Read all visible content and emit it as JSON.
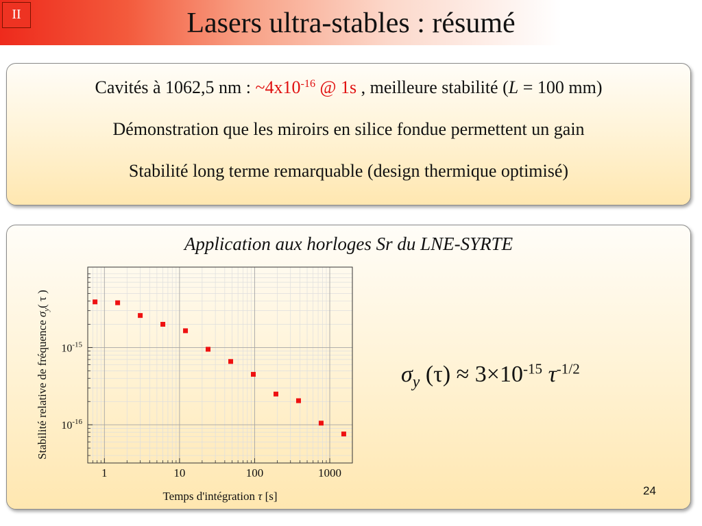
{
  "header": {
    "section": "II",
    "title": "Lasers ultra-stables : résumé"
  },
  "box1": {
    "line1": {
      "pre": "Cavités à 1062,5 nm : ",
      "value": "~4x10",
      "exp": "-16",
      "at": " @ 1s",
      "post": " , meilleure stabilité (",
      "L": "L",
      "post2": " = 100 mm)"
    },
    "line2": "Démonstration que les miroirs en silice fondue permettent un gain",
    "line3": "Stabilité long terme remarquable (design thermique optimisé)"
  },
  "box2": {
    "title": "Application aux horloges Sr du LNE-SYRTE",
    "formula": {
      "sigma": "σ",
      "sub": "y",
      "tau_paren": " (τ) ≈ 3×10",
      "exp": "-15",
      "tau": " τ",
      "tau_exp": "-1/2"
    }
  },
  "page_number": "24",
  "chart_data": {
    "type": "scatter",
    "x_scale": "log",
    "y_scale": "log",
    "xlabel": "Temps d'intégration",
    "xlabel_symbol": "τ",
    "xlabel_unit": "[s]",
    "ylabel": "Stabilité relative de fréquence",
    "ylabel_symbol": "σ",
    "ylabel_sub": "y",
    "ylabel_arg": "( τ )",
    "xlim": [
      0.6,
      2000
    ],
    "ylim": [
      3.2e-17,
      1.1e-14
    ],
    "x_ticks": [
      {
        "value": 1,
        "label": "1"
      },
      {
        "value": 10,
        "label": "10"
      },
      {
        "value": 100,
        "label": "100"
      },
      {
        "value": 1000,
        "label": "1000"
      }
    ],
    "y_ticks": [
      {
        "value": 1e-15,
        "base": "10",
        "exp": "-15"
      },
      {
        "value": 1e-16,
        "base": "10",
        "exp": "-16"
      }
    ],
    "grid": true,
    "marker_color": "#ee1111",
    "series": [
      {
        "x": [
          0.75,
          1.5,
          3,
          6,
          12,
          24,
          48,
          96,
          192,
          384,
          768,
          1536
        ],
        "y": [
          3.9e-15,
          3.8e-15,
          2.6e-15,
          2e-15,
          1.65e-15,
          9.5e-16,
          6.6e-16,
          4.5e-16,
          2.5e-16,
          2.05e-16,
          1.05e-16,
          7.6e-17
        ]
      }
    ]
  }
}
